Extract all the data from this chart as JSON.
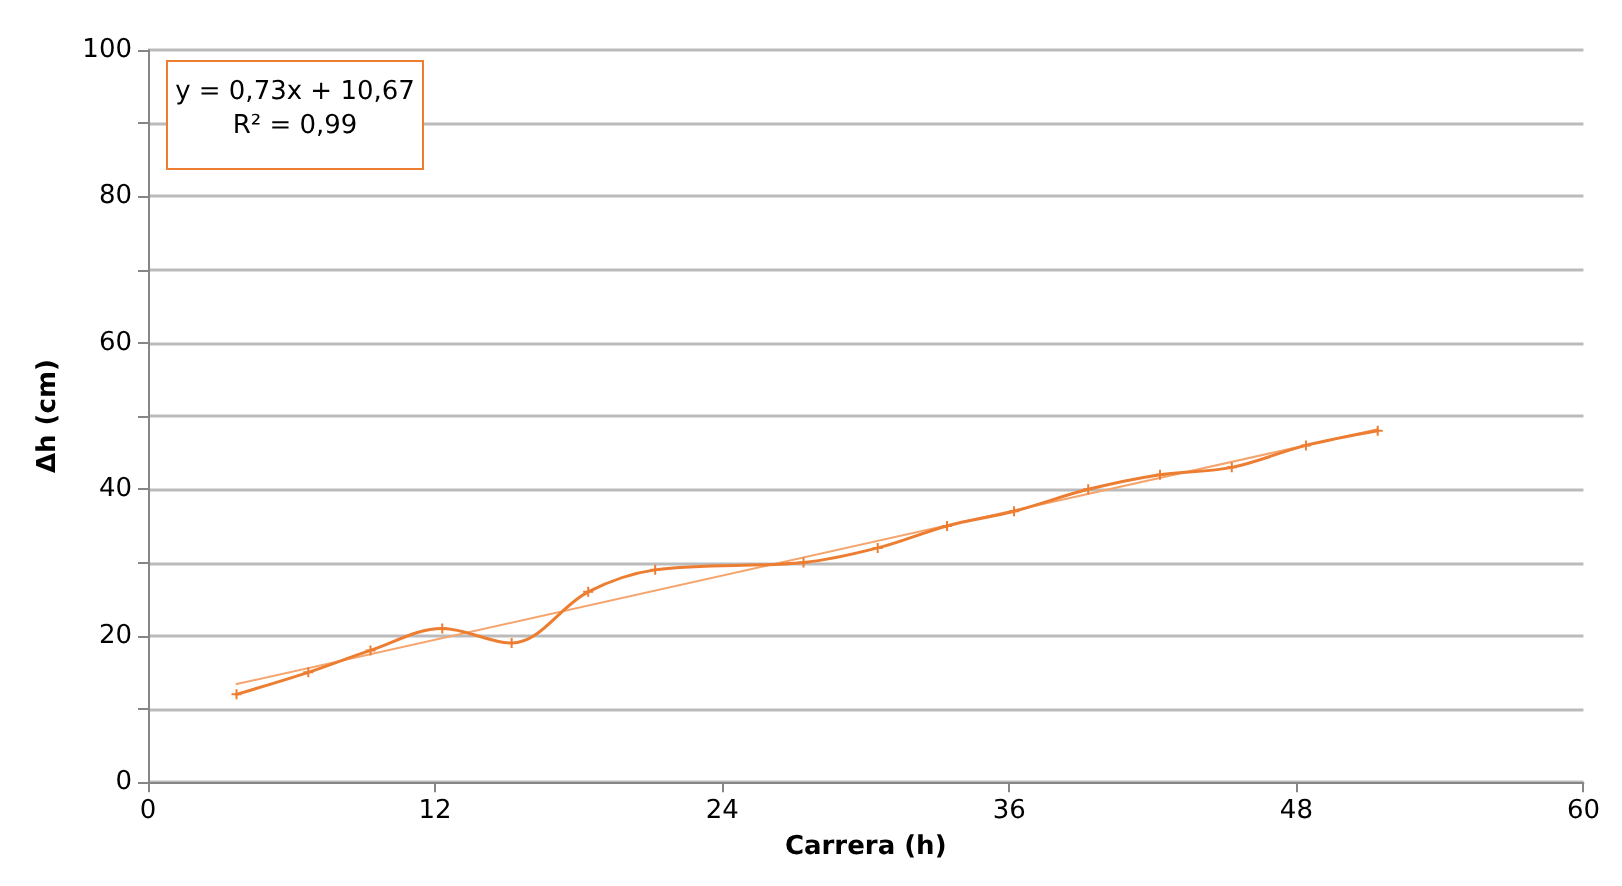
{
  "chart_data": {
    "type": "line",
    "xlabel": "Carrera (h)",
    "ylabel": "Δh (cm)",
    "annotations": [
      "y = 0,73x + 10,67",
      "R² = 0,99"
    ],
    "xlim": [
      0,
      60
    ],
    "xticks": [
      0,
      12,
      24,
      36,
      48,
      60
    ],
    "ylim": [
      0,
      100
    ],
    "yticks": [
      0,
      {
        "value": 10,
        "label": null
      },
      20,
      {
        "value": 30,
        "label": null
      },
      40,
      {
        "value": 50,
        "label": null
      },
      60,
      {
        "value": 70,
        "label": null
      },
      80,
      {
        "value": 90,
        "label": null
      },
      100
    ],
    "grid": "y",
    "marker": "cross",
    "line_style": "solid",
    "series": [
      {
        "color": "#ed7d31",
        "x": [
          3.7,
          6.7,
          9.3,
          12.3,
          15.2,
          18.4,
          21.2,
          27.4,
          30.5,
          33.4,
          36.2,
          39.3,
          42.3,
          45.3,
          48.4,
          51.4
        ],
        "values": [
          12,
          15,
          18,
          21,
          19,
          26,
          29,
          30,
          32,
          35,
          37,
          40,
          42,
          43,
          46,
          48
        ]
      },
      {
        "color": "#f4a46c",
        "marker": "none",
        "x": [
          3.7,
          51.4
        ],
        "values": [
          13.4,
          48.2
        ]
      }
    ]
  }
}
